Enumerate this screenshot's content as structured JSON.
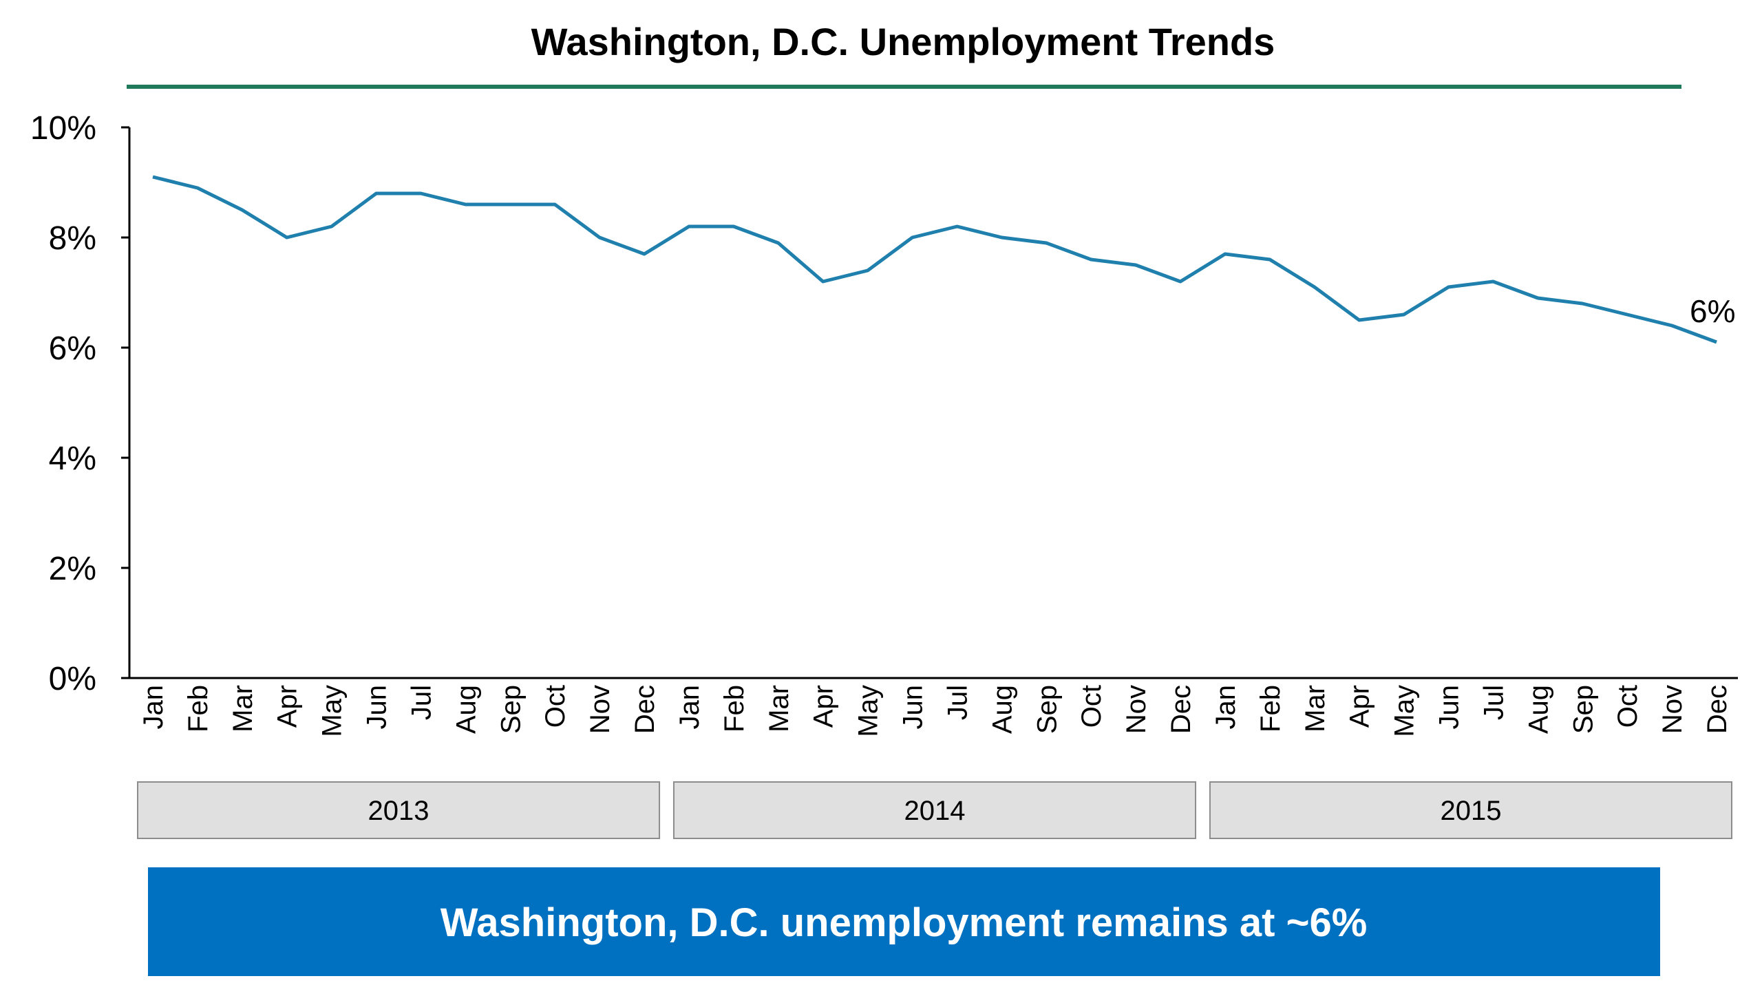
{
  "chart_data": {
    "type": "line",
    "title": "Washington, D.C. Unemployment Trends",
    "xlabel": "",
    "ylabel": "",
    "ylim": [
      0,
      10
    ],
    "yticks": [
      "0%",
      "2%",
      "4%",
      "6%",
      "8%",
      "10%"
    ],
    "grid": false,
    "categories": [
      "Jan",
      "Feb",
      "Mar",
      "Apr",
      "May",
      "Jun",
      "Jul",
      "Aug",
      "Sep",
      "Oct",
      "Nov",
      "Dec",
      "Jan",
      "Feb",
      "Mar",
      "Apr",
      "May",
      "Jun",
      "Jul",
      "Aug",
      "Sep",
      "Oct",
      "Nov",
      "Dec",
      "Jan",
      "Feb",
      "Mar",
      "Apr",
      "May",
      "Jun",
      "Jul",
      "Aug",
      "Sep",
      "Oct",
      "Nov",
      "Dec"
    ],
    "years": [
      "2013",
      "2014",
      "2015"
    ],
    "series": [
      {
        "values": [
          9.1,
          8.9,
          8.5,
          8.0,
          8.2,
          8.8,
          8.8,
          8.6,
          8.6,
          8.6,
          8.0,
          7.7,
          8.2,
          8.2,
          7.9,
          7.2,
          7.4,
          8.0,
          8.2,
          8.0,
          7.9,
          7.6,
          7.5,
          7.2,
          7.7,
          7.6,
          7.1,
          6.5,
          6.6,
          7.1,
          7.2,
          6.9,
          6.8,
          6.6,
          6.4,
          6.1
        ],
        "color": "#1f7fad"
      }
    ],
    "end_label": "6%",
    "title_rule_color": "#1e7a5a"
  },
  "banner": {
    "text": "Washington, D.C. unemployment remains at ~6%",
    "color": "#0070c0"
  }
}
